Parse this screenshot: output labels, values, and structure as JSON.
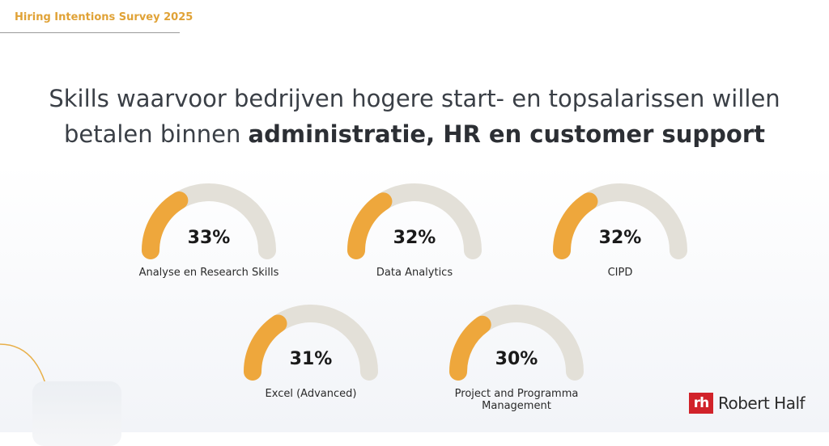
{
  "header": {
    "survey_title": "Hiring Intentions Survey 2025"
  },
  "headline": {
    "line1": "Skills waarvoor bedrijven hogere start- en topsalarissen willen",
    "line2_prefix": "betalen binnen ",
    "line2_bold": "administratie, HR en customer support"
  },
  "colors": {
    "accent": "#eea73c",
    "track": "#e3e0d8",
    "survey_label": "#e0a236",
    "brand_red": "#d1232a"
  },
  "chart_data": {
    "type": "gauge",
    "max": 100,
    "items": [
      {
        "label": "Analyse en Research Skills",
        "value": 33,
        "display": "33%"
      },
      {
        "label": "Data Analytics",
        "value": 32,
        "display": "32%"
      },
      {
        "label": "CIPD",
        "value": 32,
        "display": "32%"
      },
      {
        "label": "Excel (Advanced)",
        "value": 31,
        "display": "31%"
      },
      {
        "label": "Project and Programma Management",
        "value": 30,
        "display": "30%"
      }
    ]
  },
  "logo": {
    "mark": "rh",
    "text": "Robert Half",
    "icon": "robert-half-logo"
  }
}
